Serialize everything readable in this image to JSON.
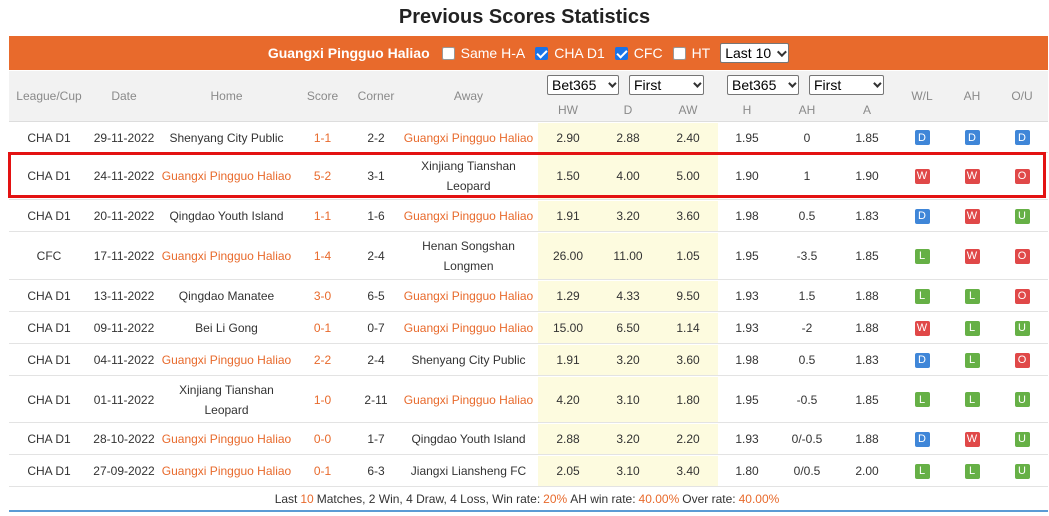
{
  "title": "Previous Scores Statistics",
  "filter": {
    "team": "Guangxi Pingguo Haliao",
    "options": [
      {
        "label": "Same H-A",
        "checked": false
      },
      {
        "label": "CHA D1",
        "checked": true
      },
      {
        "label": "CFC",
        "checked": true
      },
      {
        "label": "HT",
        "checked": false
      }
    ],
    "last_select": "Last 10"
  },
  "headers": {
    "league": "League/Cup",
    "date": "Date",
    "home": "Home",
    "score": "Score",
    "corner": "Corner",
    "away": "Away",
    "bookmaker1": "Bet365",
    "period1": "First",
    "bookmaker2": "Bet365",
    "period2": "First",
    "hw": "HW",
    "d": "D",
    "aw": "AW",
    "h": "H",
    "ah": "AH",
    "a": "A",
    "wl": "W/L",
    "ah_col": "AH",
    "ou": "O/U"
  },
  "rows": [
    {
      "league": "CHA D1",
      "date": "29-11-2022",
      "home": "Shenyang City Public",
      "home_team": false,
      "score": "1-1",
      "corner": "2-2",
      "away": "Guangxi Pingguo Haliao",
      "away_team": true,
      "hw": "2.90",
      "d": "2.88",
      "aw": "2.40",
      "h": "1.95",
      "ah": "0",
      "a": "1.85",
      "wl": "D",
      "ahr": "D",
      "ou": "D"
    },
    {
      "league": "CHA D1",
      "date": "24-11-2022",
      "home": "Guangxi Pingguo Haliao",
      "home_team": true,
      "score": "5-2",
      "corner": "3-1",
      "away": "Xinjiang Tianshan Leopard",
      "away_team": false,
      "hw": "1.50",
      "d": "4.00",
      "aw": "5.00",
      "h": "1.90",
      "ah": "1",
      "a": "1.90",
      "wl": "W",
      "ahr": "W",
      "ou": "O"
    },
    {
      "league": "CHA D1",
      "date": "20-11-2022",
      "home": "Qingdao Youth Island",
      "home_team": false,
      "score": "1-1",
      "corner": "1-6",
      "away": "Guangxi Pingguo Haliao",
      "away_team": true,
      "hw": "1.91",
      "d": "3.20",
      "aw": "3.60",
      "h": "1.98",
      "ah": "0.5",
      "a": "1.83",
      "wl": "D",
      "ahr": "W",
      "ou": "U"
    },
    {
      "league": "CFC",
      "date": "17-11-2022",
      "home": "Guangxi Pingguo Haliao",
      "home_team": true,
      "score": "1-4",
      "corner": "2-4",
      "away": "Henan Songshan Longmen",
      "away_team": false,
      "hw": "26.00",
      "d": "11.00",
      "aw": "1.05",
      "h": "1.95",
      "ah": "-3.5",
      "a": "1.85",
      "wl": "L",
      "ahr": "W",
      "ou": "O"
    },
    {
      "league": "CHA D1",
      "date": "13-11-2022",
      "home": "Qingdao Manatee",
      "home_team": false,
      "score": "3-0",
      "corner": "6-5",
      "away": "Guangxi Pingguo Haliao",
      "away_team": true,
      "hw": "1.29",
      "d": "4.33",
      "aw": "9.50",
      "h": "1.93",
      "ah": "1.5",
      "a": "1.88",
      "wl": "L",
      "ahr": "L",
      "ou": "O"
    },
    {
      "league": "CHA D1",
      "date": "09-11-2022",
      "home": "Bei Li Gong",
      "home_team": false,
      "score": "0-1",
      "corner": "0-7",
      "away": "Guangxi Pingguo Haliao",
      "away_team": true,
      "hw": "15.00",
      "d": "6.50",
      "aw": "1.14",
      "h": "1.93",
      "ah": "-2",
      "a": "1.88",
      "wl": "W",
      "ahr": "L",
      "ou": "U"
    },
    {
      "league": "CHA D1",
      "date": "04-11-2022",
      "home": "Guangxi Pingguo Haliao",
      "home_team": true,
      "score": "2-2",
      "corner": "2-4",
      "away": "Shenyang City Public",
      "away_team": false,
      "hw": "1.91",
      "d": "3.20",
      "aw": "3.60",
      "h": "1.98",
      "ah": "0.5",
      "a": "1.83",
      "wl": "D",
      "ahr": "L",
      "ou": "O"
    },
    {
      "league": "CHA D1",
      "date": "01-11-2022",
      "home": "Xinjiang Tianshan Leopard",
      "home_team": false,
      "score": "1-0",
      "corner": "2-11",
      "away": "Guangxi Pingguo Haliao",
      "away_team": true,
      "hw": "4.20",
      "d": "3.10",
      "aw": "1.80",
      "h": "1.95",
      "ah": "-0.5",
      "a": "1.85",
      "wl": "L",
      "ahr": "L",
      "ou": "U"
    },
    {
      "league": "CHA D1",
      "date": "28-10-2022",
      "home": "Guangxi Pingguo Haliao",
      "home_team": true,
      "score": "0-0",
      "corner": "1-7",
      "away": "Qingdao Youth Island",
      "away_team": false,
      "hw": "2.88",
      "d": "3.20",
      "aw": "2.20",
      "h": "1.93",
      "ah": "0/-0.5",
      "a": "1.88",
      "wl": "D",
      "ahr": "W",
      "ou": "U"
    },
    {
      "league": "CHA D1",
      "date": "27-09-2022",
      "home": "Guangxi Pingguo Haliao",
      "home_team": true,
      "score": "0-1",
      "corner": "6-3",
      "away": "Jiangxi Liansheng FC",
      "away_team": false,
      "hw": "2.05",
      "d": "3.10",
      "aw": "3.40",
      "h": "1.80",
      "ah": "0/0.5",
      "a": "2.00",
      "wl": "L",
      "ahr": "L",
      "ou": "U"
    }
  ],
  "footer": {
    "t1": "Last",
    "matches": "10",
    "t2": "Matches, 2 Win, 4 Draw, 4 Loss, Win rate:",
    "win_rate": "20%",
    "t3": "AH win rate:",
    "ah_rate": "40.00%",
    "t4": "Over rate:",
    "over_rate": "40.00%"
  },
  "colors": {
    "accent": "#e86a2c",
    "draw": "#3f86d8",
    "win": "#e04848",
    "loss": "#66b046",
    "highlight": "#e31212"
  }
}
